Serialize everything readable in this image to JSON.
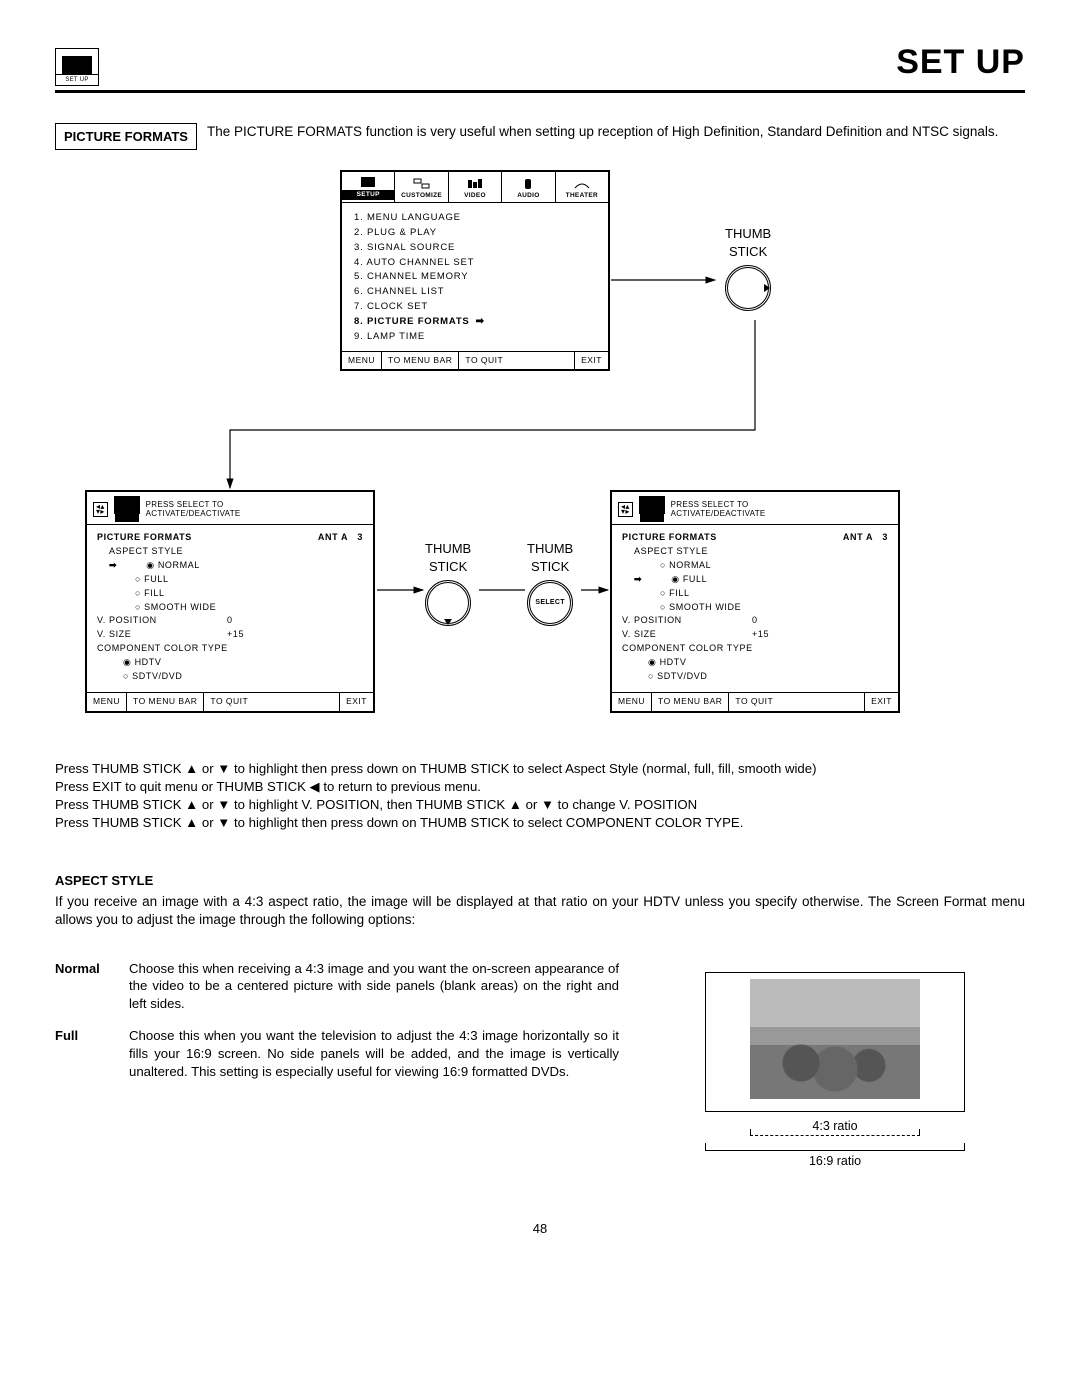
{
  "page": {
    "title": "SET UP",
    "icon_label": "SET UP",
    "number": "48"
  },
  "pf": {
    "box": "PICTURE FORMATS",
    "text": "The PICTURE FORMATS function is very useful when setting up reception of High Definition, Standard Definition and NTSC signals."
  },
  "main_menu": {
    "tabs": [
      "SETUP",
      "CUSTOMIZE",
      "VIDEO",
      "AUDIO",
      "THEATER"
    ],
    "items": [
      "1. MENU LANGUAGE",
      "2. PLUG & PLAY",
      "3. SIGNAL SOURCE",
      "4. AUTO CHANNEL SET",
      "5. CHANNEL MEMORY",
      "6. CHANNEL LIST",
      "7. CLOCK SET",
      "8. PICTURE FORMATS",
      "9. LAMP TIME"
    ],
    "selected_index": 7,
    "footer": [
      "MENU",
      "TO MENU BAR",
      "TO QUIT",
      "EXIT"
    ]
  },
  "sub_header": {
    "text1": "PRESS SELECT TO",
    "text2": "ACTIVATE/DEACTIVATE",
    "mini_label": "SETUP"
  },
  "sub": {
    "title": "PICTURE FORMATS",
    "ant": "ANT A",
    "ant_num": "3",
    "aspect_label": "ASPECT STYLE",
    "opts": [
      "NORMAL",
      "FULL",
      "FILL",
      "SMOOTH WIDE"
    ],
    "vpos_k": "V. POSITION",
    "vpos_v": "0",
    "vsize_k": "V. SIZE",
    "vsize_v": "+15",
    "cct": "COMPONENT COLOR TYPE",
    "cct_opts": [
      "HDTV",
      "SDTV/DVD"
    ],
    "footer": [
      "MENU",
      "TO MENU BAR",
      "TO QUIT",
      "EXIT"
    ]
  },
  "sub1_selected": 0,
  "sub2_selected": 1,
  "thumb": {
    "label1": "THUMB",
    "label2": "STICK",
    "select": "SELECT"
  },
  "instructions": [
    "Press THUMB STICK ▲ or ▼ to highlight then press down on THUMB STICK to select Aspect Style (normal, full, fill, smooth wide)",
    "Press EXIT to quit menu or THUMB STICK ◀ to return to previous menu.",
    "Press THUMB STICK ▲ or ▼ to highlight V. POSITION, then THUMB STICK ▲ or ▼ to change V. POSITION",
    "Press THUMB STICK ▲ or ▼ to highlight then press down on THUMB STICK to select COMPONENT COLOR TYPE."
  ],
  "aspect": {
    "header": "ASPECT STYLE",
    "intro": "If you receive an image with a 4:3 aspect ratio, the image will be displayed at that ratio on your HDTV unless you specify otherwise. The Screen Format menu allows you to adjust the image through the following options:",
    "normal_label": "Normal",
    "normal_desc": "Choose this when receiving a 4:3 image and you want the on-screen appearance of the video to be a centered picture with side panels (blank areas) on the right and left sides.",
    "full_label": "Full",
    "full_desc": "Choose this when you want the television to adjust the 4:3 image horizontally so it fills your 16:9 screen. No side panels will be added, and the image is vertically unaltered. This setting is especially useful for viewing 16:9 formatted DVDs.",
    "ratio43": "4:3 ratio",
    "ratio169": "16:9 ratio"
  },
  "colors": {
    "black": "#000000",
    "white": "#ffffff",
    "gray": "#888888"
  }
}
